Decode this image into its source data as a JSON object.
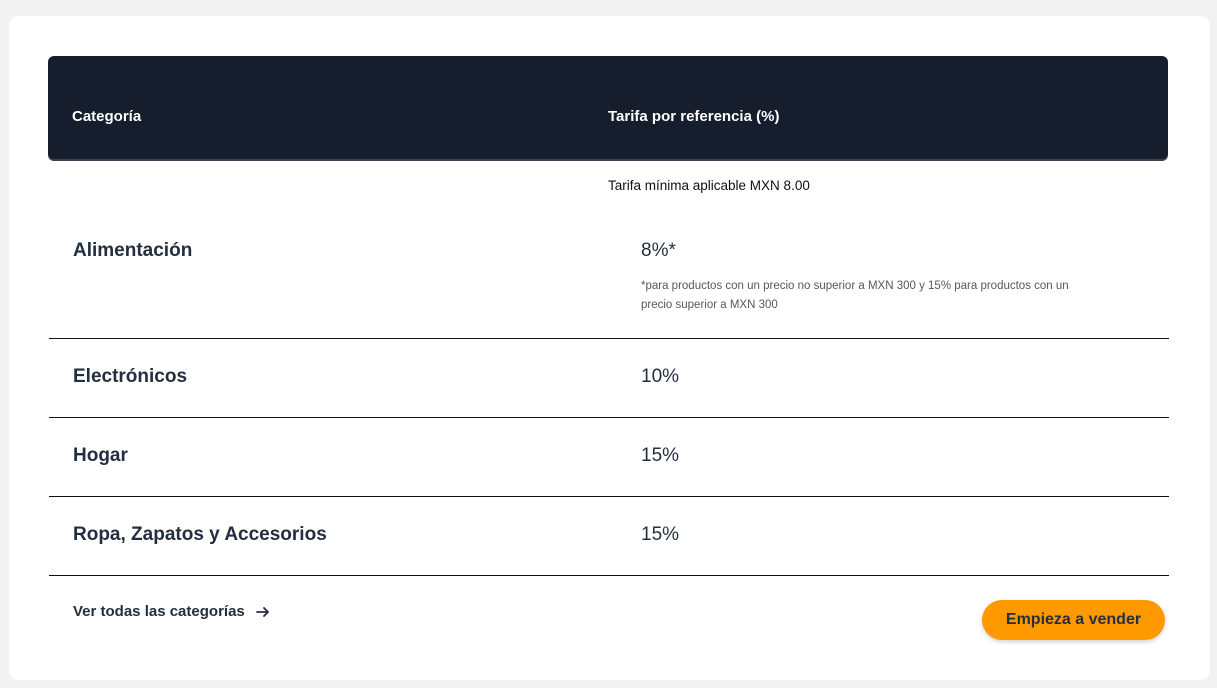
{
  "table": {
    "header": {
      "category": "Categoría",
      "rate": "Tarifa por referencia (%)"
    },
    "min_fee_note": "Tarifa mínima aplicable MXN 8.00",
    "rows": [
      {
        "category": "Alimentación",
        "rate": "8%*",
        "note": "*para productos con un precio no superior a MXN 300 y 15% para productos con un precio superior a MXN 300"
      },
      {
        "category": "Electrónicos",
        "rate": "10%"
      },
      {
        "category": "Hogar",
        "rate": "15%"
      },
      {
        "category": "Ropa, Zapatos y Accesorios",
        "rate": "15%"
      }
    ]
  },
  "footer": {
    "all_categories_link": "Ver todas las categorías",
    "cta_label": "Empieza a vender"
  },
  "icons": {
    "link_arrow": "arrow-right-icon"
  },
  "colors": {
    "header_bg": "#161d2d",
    "cta_bg": "#ff9900",
    "text_dark": "#232f3e"
  }
}
